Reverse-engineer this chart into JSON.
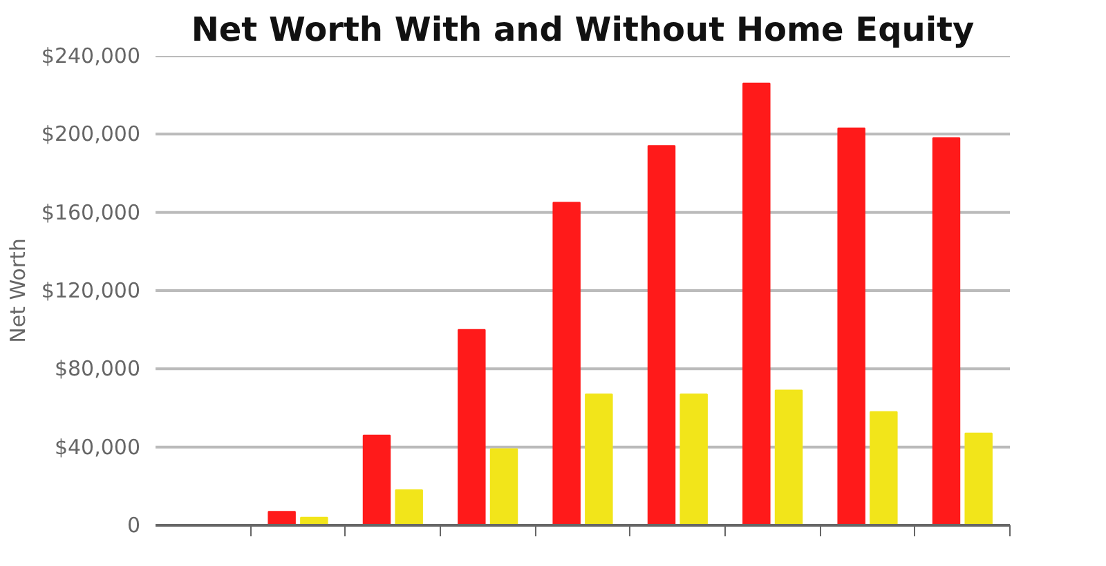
{
  "chart_data": {
    "type": "bar",
    "title": "Net Worth With and Without Home Equity",
    "ylabel": "Net Worth",
    "categories": [
      null,
      null,
      null,
      null,
      null,
      null,
      null,
      null,
      null
    ],
    "series": [
      {
        "color": "#ff1a1a",
        "values": [
          null,
          7000,
          46000,
          100000,
          165000,
          194000,
          226000,
          203000,
          198000
        ]
      },
      {
        "color": "#f2e51a",
        "values": [
          null,
          4000,
          18000,
          39000,
          67000,
          67000,
          69000,
          58000,
          47000
        ]
      }
    ],
    "ylim": [
      0,
      240000
    ],
    "yticks": [
      0,
      {
        "value": 40000,
        "label": "$40,000"
      },
      {
        "value": 80000,
        "label": "$80,000"
      },
      {
        "value": 120000,
        "label": "$120,000"
      },
      {
        "value": 160000,
        "label": "$160,000"
      },
      {
        "value": 200000,
        "label": "$200,000"
      },
      {
        "value": 240000,
        "label": "$240,000"
      }
    ],
    "grid": "y",
    "tick_labels": "y"
  }
}
